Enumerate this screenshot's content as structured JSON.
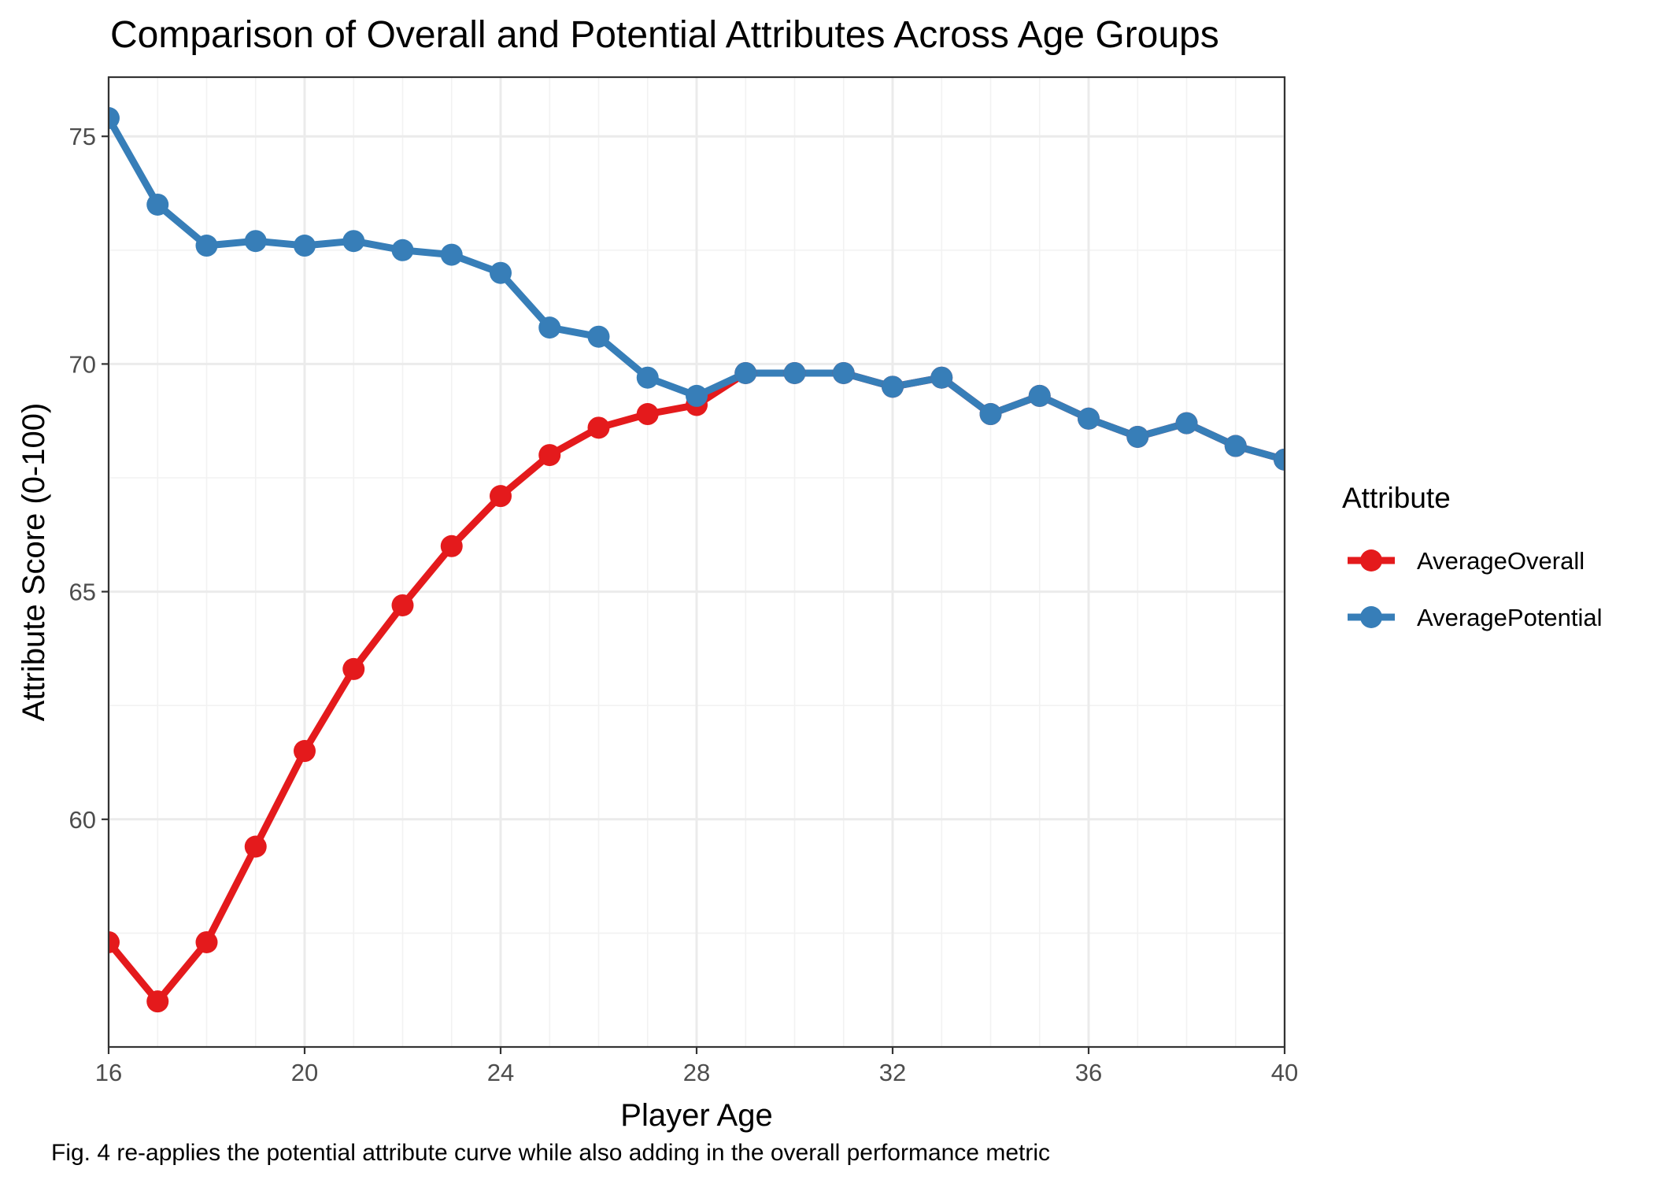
{
  "chart_data": {
    "type": "line",
    "title": "Comparison of Overall and Potential Attributes Across Age Groups",
    "xlabel": "Player Age",
    "ylabel": "Attribute Score (0-100)",
    "caption": "Fig. 4 re-applies the potential attribute curve while also adding in the overall performance metric",
    "x": [
      16,
      17,
      18,
      19,
      20,
      21,
      22,
      23,
      24,
      25,
      26,
      27,
      28,
      29,
      30,
      31,
      32,
      33,
      34,
      35,
      36,
      37,
      38,
      39,
      40
    ],
    "xlim": [
      16,
      40
    ],
    "ylim": [
      55.0,
      76.3
    ],
    "x_ticks": [
      "16",
      "20",
      "24",
      "28",
      "32",
      "36",
      "40"
    ],
    "y_ticks": [
      "60",
      "65",
      "70",
      "75"
    ],
    "grid": true,
    "legend": {
      "title": "Attribute",
      "position": "right"
    },
    "series": [
      {
        "name": "AverageOverall",
        "color": "#e41a1c",
        "values": [
          57.3,
          56.0,
          57.3,
          59.4,
          61.5,
          63.3,
          64.7,
          66.0,
          67.1,
          68.0,
          68.6,
          68.9,
          69.1,
          69.8,
          69.8,
          69.8,
          69.5,
          69.7,
          68.9,
          69.3,
          68.8,
          68.4,
          68.7,
          68.2,
          67.9
        ]
      },
      {
        "name": "AveragePotential",
        "color": "#377eb8",
        "values": [
          75.4,
          73.5,
          72.6,
          72.7,
          72.6,
          72.7,
          72.5,
          72.4,
          72.0,
          70.8,
          70.6,
          69.7,
          69.3,
          69.8,
          69.8,
          69.8,
          69.5,
          69.7,
          68.9,
          69.3,
          68.8,
          68.4,
          68.7,
          68.2,
          67.9
        ]
      }
    ]
  }
}
